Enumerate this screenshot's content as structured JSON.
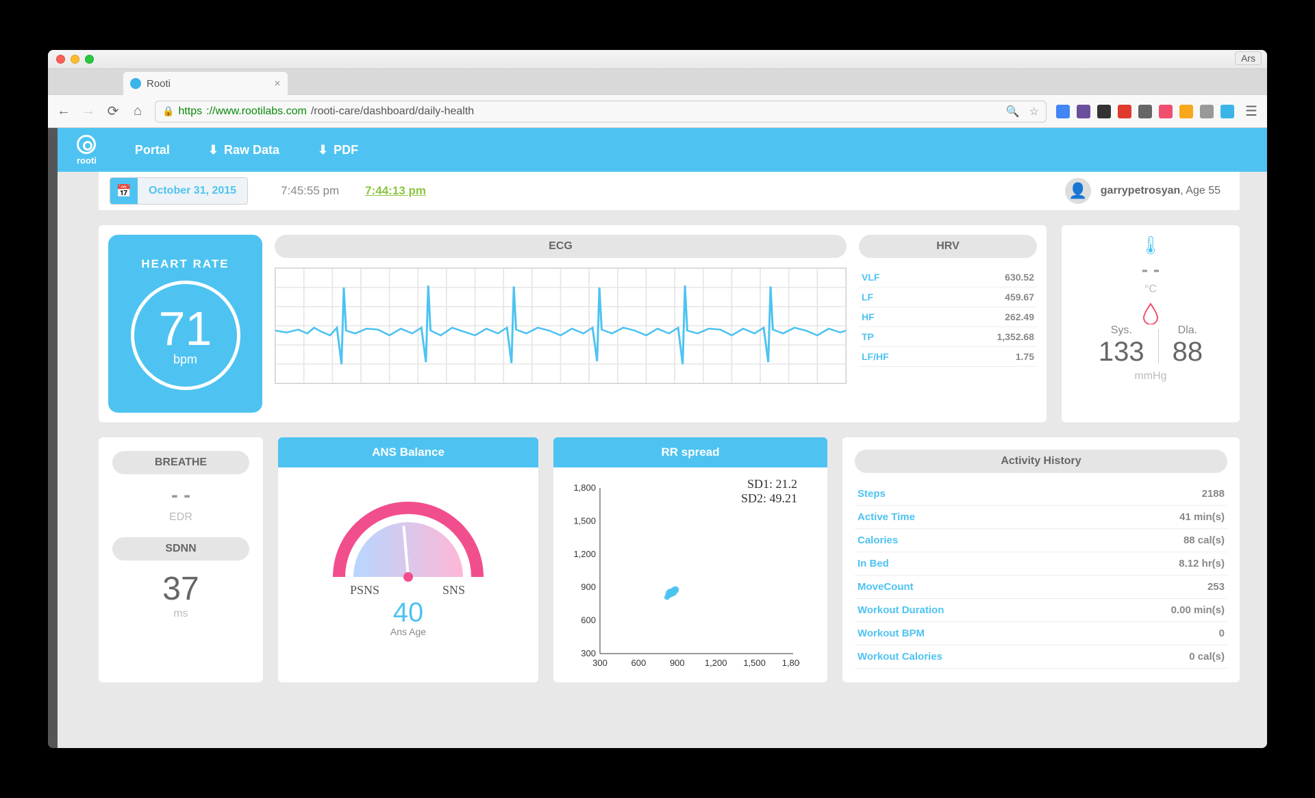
{
  "browser": {
    "tab_title": "Rooti",
    "url_https": "https",
    "url_host": "://www.rootilabs.com",
    "url_path": "/rooti-care/dashboard/daily-health",
    "ars": "Ars",
    "ext_colors": [
      "#4285f4",
      "#6a4f9e",
      "#333333",
      "#e03a2f",
      "#666666",
      "#f04e6e",
      "#f7a81b",
      "#999999",
      "#3bb4e8"
    ]
  },
  "nav": {
    "brand": "rooti",
    "portal": "Portal",
    "raw": "Raw Data",
    "pdf": "PDF"
  },
  "datebar": {
    "date": "October 31, 2015",
    "times": [
      "7:45:55 pm",
      "7:44:13 pm"
    ],
    "active_index": 1,
    "user_name": "garrypetrosyan",
    "user_meta": ", Age 55"
  },
  "heart_rate": {
    "title": "HEART RATE",
    "value": "71",
    "unit": "bpm"
  },
  "ecg": {
    "title": "ECG",
    "background_color": "#ffffff",
    "grid_color": "#e5e5e5",
    "line_color": "#4ec3f1",
    "line_width": 1.8,
    "xlim": [
      0,
      500
    ],
    "ylim": [
      0,
      120
    ],
    "points": [
      [
        0,
        55
      ],
      [
        10,
        53
      ],
      [
        20,
        56
      ],
      [
        28,
        52
      ],
      [
        34,
        58
      ],
      [
        40,
        54
      ],
      [
        48,
        50
      ],
      [
        54,
        58
      ],
      [
        58,
        20
      ],
      [
        60,
        100
      ],
      [
        62,
        55
      ],
      [
        70,
        52
      ],
      [
        80,
        57
      ],
      [
        90,
        56
      ],
      [
        100,
        50
      ],
      [
        110,
        57
      ],
      [
        120,
        52
      ],
      [
        128,
        58
      ],
      [
        132,
        22
      ],
      [
        134,
        102
      ],
      [
        136,
        55
      ],
      [
        145,
        50
      ],
      [
        155,
        58
      ],
      [
        165,
        54
      ],
      [
        175,
        50
      ],
      [
        185,
        57
      ],
      [
        195,
        52
      ],
      [
        203,
        58
      ],
      [
        207,
        21
      ],
      [
        209,
        101
      ],
      [
        211,
        56
      ],
      [
        220,
        52
      ],
      [
        230,
        58
      ],
      [
        240,
        55
      ],
      [
        250,
        50
      ],
      [
        260,
        57
      ],
      [
        270,
        52
      ],
      [
        278,
        58
      ],
      [
        282,
        23
      ],
      [
        284,
        100
      ],
      [
        286,
        56
      ],
      [
        295,
        52
      ],
      [
        305,
        58
      ],
      [
        315,
        55
      ],
      [
        325,
        50
      ],
      [
        335,
        57
      ],
      [
        345,
        52
      ],
      [
        353,
        58
      ],
      [
        357,
        20
      ],
      [
        359,
        102
      ],
      [
        361,
        55
      ],
      [
        370,
        52
      ],
      [
        380,
        57
      ],
      [
        390,
        56
      ],
      [
        400,
        50
      ],
      [
        410,
        57
      ],
      [
        420,
        52
      ],
      [
        428,
        58
      ],
      [
        432,
        22
      ],
      [
        434,
        101
      ],
      [
        436,
        56
      ],
      [
        445,
        52
      ],
      [
        455,
        58
      ],
      [
        465,
        55
      ],
      [
        475,
        50
      ],
      [
        485,
        57
      ],
      [
        495,
        53
      ],
      [
        500,
        55
      ]
    ]
  },
  "hrv": {
    "title": "HRV",
    "rows": [
      {
        "k": "VLF",
        "v": "630.52"
      },
      {
        "k": "LF",
        "v": "459.67"
      },
      {
        "k": "HF",
        "v": "262.49"
      },
      {
        "k": "TP",
        "v": "1,352.68"
      },
      {
        "k": "LF/HF",
        "v": "1.75"
      }
    ]
  },
  "vitals": {
    "temp_value": "- -",
    "temp_unit": "°C",
    "sys_lbl": "Sys.",
    "sys_val": "133",
    "dia_lbl": "Dla.",
    "dia_val": "88",
    "bp_unit": "mmHg"
  },
  "breathe": {
    "title": "BREATHE",
    "dash": "- -",
    "edr": "EDR",
    "sdnn_title": "SDNN",
    "sdnn_val": "37",
    "sdnn_unit": "ms"
  },
  "ans": {
    "title": "ANS Balance",
    "left": "PSNS",
    "right": "SNS",
    "value": "40",
    "label": "Ans Age",
    "ring_color": "#f14e8e",
    "grad_left": "#b7d7ff",
    "grad_right": "#ffb7d7",
    "needle_angle": -5
  },
  "rr": {
    "title": "RR spread",
    "sd1_label": "SD1: ",
    "sd1_val": "21.2",
    "sd2_label": "SD2: ",
    "sd2_val": "49.21",
    "xlim": [
      300,
      1800
    ],
    "ylim": [
      300,
      1800
    ],
    "ticks": [
      300,
      600,
      900,
      1200,
      1500,
      1800
    ],
    "point_color": "#4ec3f1",
    "points": [
      [
        820,
        810
      ],
      [
        830,
        825
      ],
      [
        835,
        840
      ],
      [
        845,
        835
      ],
      [
        850,
        850
      ],
      [
        860,
        845
      ],
      [
        855,
        860
      ],
      [
        870,
        855
      ],
      [
        865,
        870
      ],
      [
        880,
        865
      ],
      [
        875,
        880
      ],
      [
        890,
        870
      ],
      [
        885,
        885
      ],
      [
        840,
        830
      ],
      [
        830,
        845
      ],
      [
        850,
        835
      ],
      [
        860,
        860
      ],
      [
        875,
        850
      ],
      [
        865,
        845
      ],
      [
        855,
        855
      ],
      [
        845,
        865
      ],
      [
        870,
        870
      ],
      [
        880,
        875
      ],
      [
        860,
        850
      ],
      [
        850,
        860
      ],
      [
        840,
        850
      ],
      [
        835,
        855
      ],
      [
        870,
        845
      ],
      [
        828,
        820
      ],
      [
        892,
        882
      ]
    ]
  },
  "activity": {
    "title": "Activity History",
    "rows": [
      {
        "k": "Steps",
        "v": "2188"
      },
      {
        "k": "Active Time",
        "v": "41  min(s)"
      },
      {
        "k": "Calories",
        "v": "88  cal(s)"
      },
      {
        "k": "In Bed",
        "v": "8.12  hr(s)"
      },
      {
        "k": "MoveCount",
        "v": "253"
      },
      {
        "k": "Workout Duration",
        "v": "0.00  min(s)"
      },
      {
        "k": "Workout BPM",
        "v": "0"
      },
      {
        "k": "Workout Calories",
        "v": "0  cal(s)"
      }
    ]
  }
}
